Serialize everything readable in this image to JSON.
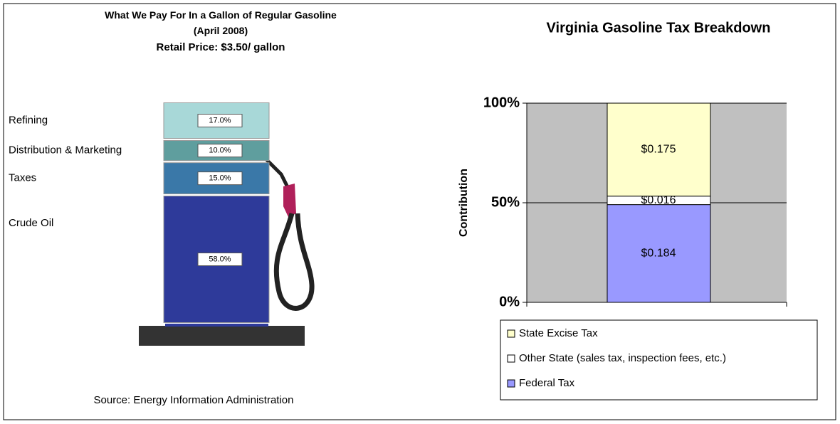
{
  "chart_data": [
    {
      "type": "pump",
      "title": "What We Pay For In a Gallon of Regular Gasoline",
      "subtitle": "(April 2008)",
      "price_note": "Retail Price: $3.50/ gallon",
      "source": "Source:  Energy Information Administration",
      "categories": [
        "Refining",
        "Distribution & Marketing",
        "Taxes",
        "Crude Oil"
      ],
      "values": [
        17,
        10,
        15,
        58
      ],
      "value_labels": [
        "17.0%",
        "10.0%",
        "15.0%",
        "58.0%"
      ],
      "colors": [
        "#a8d8d8",
        "#5f9e9e",
        "#3a78a8",
        "#2e3a9a"
      ]
    },
    {
      "type": "stackedbar",
      "title": "Virginia Gasoline Tax Breakdown",
      "ylabel": "Contribution",
      "percent_stacked": true,
      "ylim": [
        0,
        100
      ],
      "yticks": [
        {
          "value": 0,
          "label": "0%"
        },
        {
          "value": 50,
          "label": "50%"
        },
        {
          "value": 100,
          "label": "100%"
        }
      ],
      "grid": true,
      "series": [
        {
          "name": "Federal Tax",
          "color": "#9999ff",
          "values": [
            0.184
          ],
          "value_labels": [
            "$0.184"
          ]
        },
        {
          "name": "Other State (sales tax, inspection fees, etc.)",
          "color": "#ffffff",
          "values": [
            0.016
          ],
          "value_labels": [
            "$0.016"
          ]
        },
        {
          "name": "State Excise Tax",
          "color": "#ffffcc",
          "values": [
            0.175
          ],
          "value_labels": [
            "$0.175"
          ]
        }
      ]
    }
  ]
}
